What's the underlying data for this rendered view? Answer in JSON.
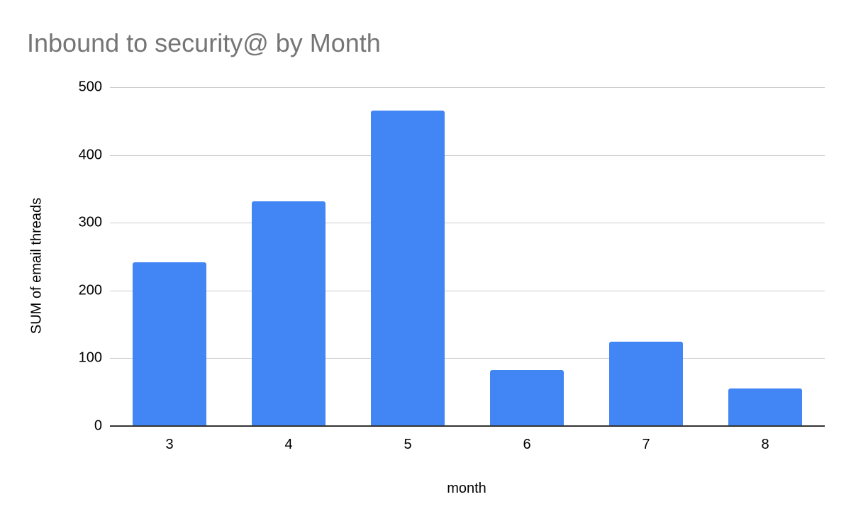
{
  "chart_data": {
    "type": "bar",
    "title": "Inbound to security@ by Month",
    "xlabel": "month",
    "ylabel": "SUM of email threads",
    "categories": [
      "3",
      "4",
      "5",
      "6",
      "7",
      "8"
    ],
    "values": [
      242,
      332,
      466,
      83,
      124,
      55
    ],
    "series": [
      {
        "name": "SUM of email threads",
        "values": [
          242,
          332,
          466,
          83,
          124,
          55
        ],
        "color": "#4285f4"
      }
    ],
    "ylim": [
      0,
      500
    ],
    "yticks": [
      "0",
      "100",
      "200",
      "300",
      "400",
      "500"
    ],
    "grid": true,
    "legend": "none"
  }
}
